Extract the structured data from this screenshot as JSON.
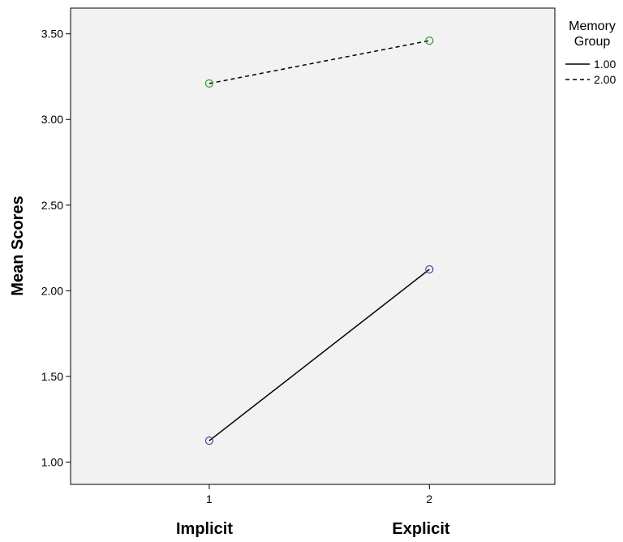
{
  "chart_data": {
    "type": "line",
    "x": [
      1,
      2
    ],
    "x_tick_labels": [
      "1",
      "2"
    ],
    "x_category_labels": [
      "Implicit",
      "Explicit"
    ],
    "ylabel": "Mean Scores",
    "ylim": [
      0.87,
      3.65
    ],
    "y_ticks": [
      1.0,
      1.5,
      2.0,
      2.5,
      3.0,
      3.5
    ],
    "y_tick_labels": [
      "1.00",
      "1.50",
      "2.00",
      "2.50",
      "3.00",
      "3.50"
    ],
    "xlim": [
      0.37,
      2.57
    ],
    "grid": false,
    "legend": {
      "title_lines": [
        "Memory",
        "Group"
      ],
      "placement": "right"
    },
    "series": [
      {
        "name": "1.00",
        "values": [
          1.125,
          2.125
        ],
        "line_style": "solid",
        "marker_color": "#3a4ea3"
      },
      {
        "name": "2.00",
        "values": [
          3.21,
          3.46
        ],
        "line_style": "dashed",
        "marker_color": "#33a02c"
      }
    ],
    "colors": {
      "plot_background": "#f2f2f2",
      "line": "#000000"
    }
  }
}
